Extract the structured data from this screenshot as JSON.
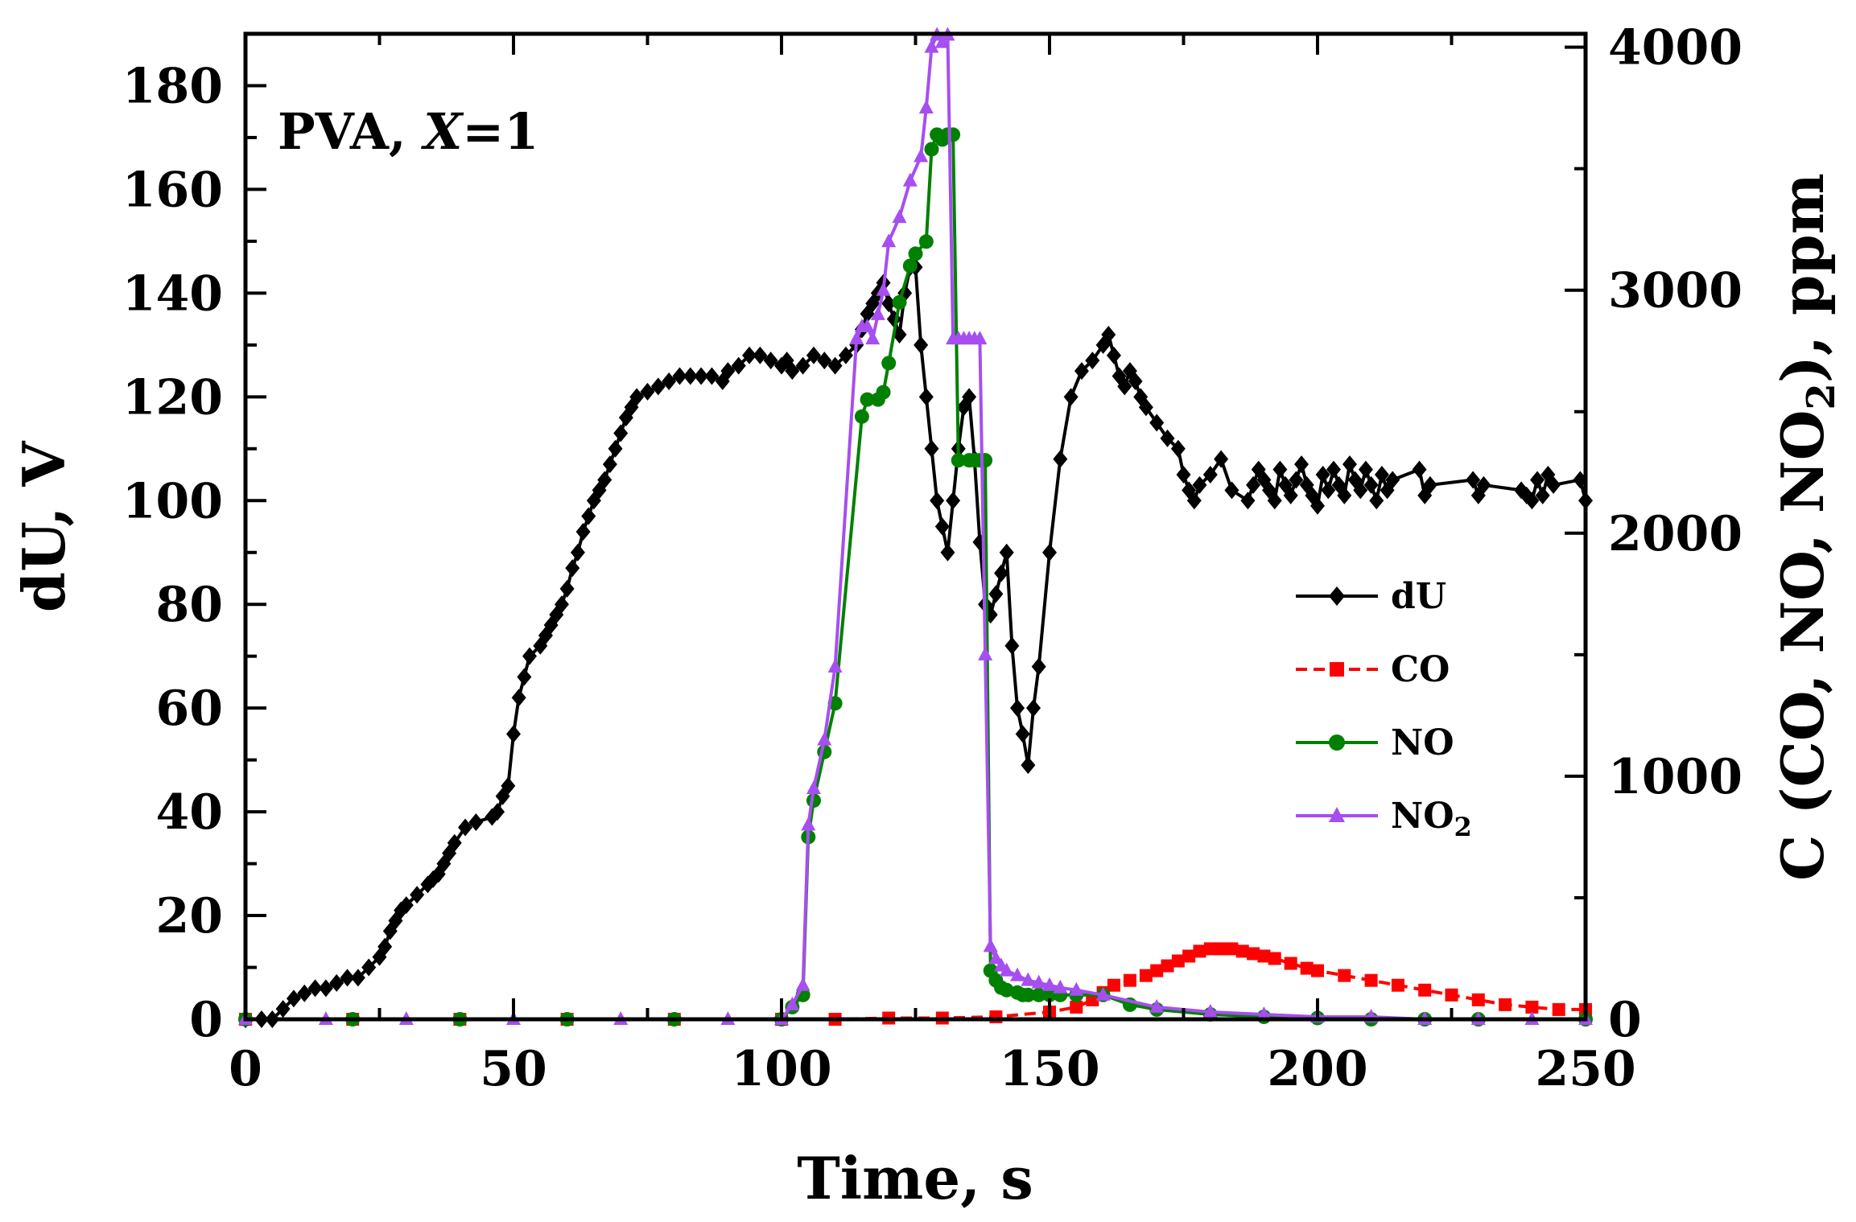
{
  "chart_data": {
    "type": "line",
    "annotation": "PVA, X=1",
    "x_axis": {
      "label": "Time, s",
      "range": [
        0,
        250
      ],
      "ticks": [
        0,
        50,
        100,
        150,
        200,
        250
      ]
    },
    "y_left": {
      "label": "dU, V",
      "range": [
        0,
        190
      ],
      "ticks": [
        0,
        20,
        40,
        60,
        80,
        100,
        120,
        140,
        160,
        180
      ]
    },
    "y_right": {
      "label": "C (CO, NO, NO2), ppm",
      "range": [
        0,
        4055
      ],
      "ticks": [
        0,
        1000,
        2000,
        3000,
        4000
      ]
    },
    "series": [
      {
        "name": "dU",
        "axis": "left",
        "color": "#000000",
        "marker": "diamond",
        "x": [
          0,
          3,
          5,
          7,
          9,
          11,
          13,
          15,
          17,
          19,
          21,
          23,
          25,
          26,
          27,
          28,
          29,
          30,
          32,
          34,
          35,
          36,
          37,
          38,
          39,
          41,
          43,
          46,
          47,
          48,
          49,
          50,
          51,
          52,
          53,
          55,
          56,
          57,
          58,
          59,
          60,
          61,
          62,
          63,
          64,
          65,
          66,
          67,
          68,
          69,
          70,
          71,
          72,
          73,
          75,
          77,
          79,
          81,
          83,
          85,
          87,
          89,
          90,
          92,
          94,
          96,
          98,
          100,
          101,
          102,
          104,
          106,
          108,
          110,
          112,
          114,
          115,
          116,
          117,
          118,
          119,
          120,
          121,
          122,
          123,
          124,
          125,
          126,
          127,
          128,
          129,
          130,
          131,
          132,
          133,
          134,
          135,
          136,
          137,
          138,
          139,
          140,
          141,
          142,
          143,
          144,
          145,
          146,
          147,
          148,
          150,
          152,
          154,
          156,
          158,
          160,
          161,
          162,
          163,
          164,
          165,
          166,
          167,
          168,
          170,
          172,
          174,
          175,
          176,
          177,
          178,
          180,
          182,
          184,
          187,
          188,
          189,
          190,
          191,
          192,
          193,
          194,
          195,
          196,
          197,
          198,
          199,
          200,
          201,
          202,
          203,
          204,
          205,
          206,
          207,
          208,
          209,
          210,
          211,
          212,
          213,
          214,
          219,
          220,
          221,
          229,
          230,
          231,
          238,
          239,
          240,
          241,
          242,
          243,
          244,
          249,
          250
        ],
        "y": [
          0,
          0,
          0,
          2,
          4,
          5,
          6,
          6,
          7,
          8,
          8,
          10,
          12,
          14,
          17,
          19,
          21,
          22,
          24,
          26,
          27,
          28,
          30,
          32,
          34,
          37,
          38,
          39,
          40,
          43,
          45,
          55,
          62,
          66,
          70,
          72,
          74,
          76,
          78,
          80,
          83,
          87,
          90,
          94,
          97,
          100,
          102,
          104,
          107,
          110,
          113,
          116,
          118,
          120,
          121,
          122,
          123,
          124,
          124,
          124,
          124,
          123,
          125,
          126,
          128,
          128,
          127,
          126,
          127,
          125,
          126,
          128,
          127,
          126,
          128,
          130,
          133,
          136,
          138,
          140,
          142,
          138,
          135,
          132,
          140,
          145,
          145,
          130,
          120,
          110,
          100,
          95,
          90,
          100,
          110,
          118,
          120,
          108,
          92,
          80,
          78,
          82,
          86,
          90,
          72,
          60,
          55,
          49,
          60,
          68,
          90,
          108,
          120,
          125,
          127,
          130,
          132,
          128,
          124,
          122,
          125,
          123,
          120,
          118,
          115,
          112,
          110,
          105,
          102,
          100,
          103,
          105,
          108,
          102,
          100,
          103,
          106,
          104,
          102,
          100,
          106,
          103,
          101,
          104,
          107,
          103,
          101,
          99,
          105,
          102,
          106,
          103,
          101,
          107,
          104,
          102,
          106,
          103,
          100,
          105,
          102,
          104,
          106,
          101,
          103,
          104,
          101,
          103,
          102,
          101,
          100,
          104,
          101,
          105,
          103,
          104,
          100
        ]
      },
      {
        "name": "CO",
        "axis": "right",
        "color": "#ff0000",
        "marker": "square",
        "x": [
          0,
          20,
          40,
          60,
          80,
          100,
          110,
          120,
          130,
          140,
          150,
          155,
          158,
          160,
          162,
          165,
          168,
          170,
          172,
          174,
          176,
          178,
          180,
          182,
          184,
          186,
          188,
          190,
          192,
          195,
          198,
          200,
          205,
          210,
          215,
          220,
          225,
          230,
          235,
          240,
          245,
          250
        ],
        "y": [
          0,
          0,
          0,
          0,
          0,
          0,
          0,
          5,
          5,
          10,
          30,
          50,
          80,
          110,
          140,
          160,
          180,
          200,
          220,
          240,
          260,
          280,
          290,
          290,
          290,
          280,
          270,
          260,
          250,
          230,
          210,
          200,
          180,
          160,
          140,
          120,
          100,
          80,
          60,
          50,
          40,
          40
        ]
      },
      {
        "name": "NO",
        "axis": "right",
        "color": "#008000",
        "marker": "circle",
        "x": [
          0,
          20,
          40,
          60,
          80,
          100,
          102,
          104,
          105,
          106,
          108,
          110,
          115,
          116,
          118,
          119,
          120,
          122,
          124,
          125,
          127,
          128,
          129,
          130,
          131,
          132,
          133,
          135,
          136,
          137,
          138,
          139,
          140,
          141,
          142,
          144,
          145,
          146,
          148,
          150,
          152,
          155,
          160,
          165,
          170,
          180,
          190,
          200,
          210,
          220,
          230,
          250
        ],
        "y": [
          0,
          0,
          0,
          0,
          0,
          0,
          50,
          100,
          750,
          900,
          1100,
          1300,
          2480,
          2550,
          2550,
          2580,
          2700,
          2950,
          3100,
          3150,
          3200,
          3580,
          3640,
          3620,
          3640,
          3640,
          2300,
          2300,
          2300,
          2300,
          2300,
          200,
          160,
          130,
          120,
          110,
          100,
          100,
          100,
          100,
          100,
          100,
          100,
          60,
          40,
          20,
          10,
          5,
          0,
          0,
          0,
          0
        ]
      },
      {
        "name": "NO2",
        "axis": "right",
        "color": "#a74ef0",
        "marker": "triangle",
        "x": [
          0,
          15,
          30,
          50,
          70,
          90,
          100,
          102,
          104,
          105,
          106,
          108,
          110,
          114,
          115,
          116,
          117,
          118,
          119,
          120,
          122,
          124,
          126,
          127,
          128,
          129,
          130,
          131,
          132,
          133,
          134,
          135,
          136,
          137,
          138,
          139,
          140,
          141,
          142,
          144,
          146,
          148,
          150,
          152,
          155,
          160,
          170,
          180,
          190,
          200,
          210,
          220,
          230,
          240,
          250
        ],
        "y": [
          0,
          0,
          0,
          0,
          0,
          0,
          0,
          60,
          140,
          800,
          950,
          1150,
          1450,
          2800,
          2850,
          2850,
          2800,
          2900,
          3000,
          3200,
          3300,
          3450,
          3550,
          3750,
          4000,
          4050,
          4020,
          4050,
          2800,
          2800,
          2800,
          2800,
          2800,
          2800,
          1500,
          300,
          250,
          220,
          200,
          180,
          160,
          150,
          140,
          130,
          120,
          100,
          50,
          30,
          20,
          10,
          10,
          0,
          0,
          0,
          0
        ]
      }
    ],
    "legend": {
      "position": "right",
      "entries": [
        "dU",
        "CO",
        "NO",
        "NO2"
      ]
    }
  }
}
